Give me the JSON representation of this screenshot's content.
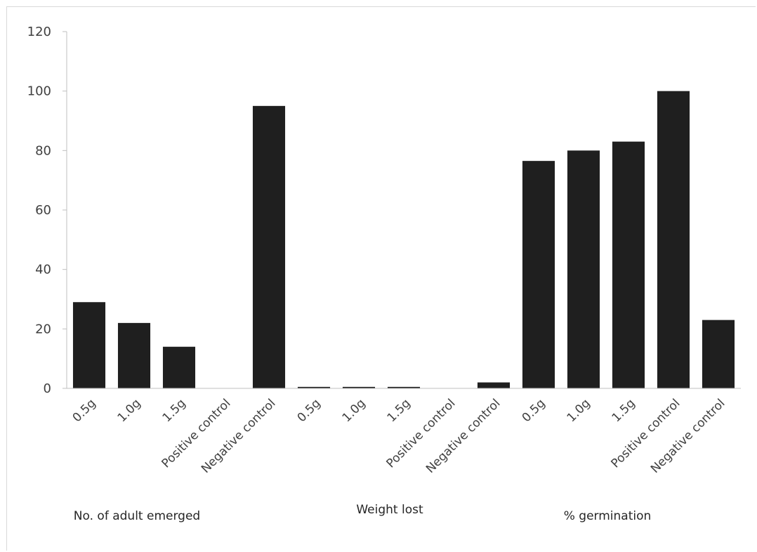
{
  "chart_data": {
    "type": "bar",
    "title": "",
    "xlabel": "",
    "ylabel": "",
    "ylim": [
      0,
      120
    ],
    "yticks": [
      "0",
      "20",
      "40",
      "60",
      "80",
      "100",
      "120"
    ],
    "grid": false,
    "legend": "none",
    "bar_color": "#1f1f1f",
    "categories": [
      "0.5g",
      "1.0g",
      "1.5g",
      "Positive control",
      "Negative control",
      "0.5g",
      "1.0g",
      "1.5g",
      "Positive control",
      "Negative control",
      "0.5g",
      "1.0g",
      "1.5g",
      "Positive control",
      "Negative control"
    ],
    "values": [
      29,
      22,
      14,
      0,
      95,
      0.5,
      0.5,
      0.5,
      0,
      2,
      76.5,
      80,
      83,
      100,
      23
    ],
    "groups": [
      {
        "label": "No. of adult emerged",
        "start": 0,
        "count": 5
      },
      {
        "label": "Weight lost",
        "start": 5,
        "count": 5
      },
      {
        "label": "% germination",
        "start": 10,
        "count": 5
      }
    ]
  }
}
